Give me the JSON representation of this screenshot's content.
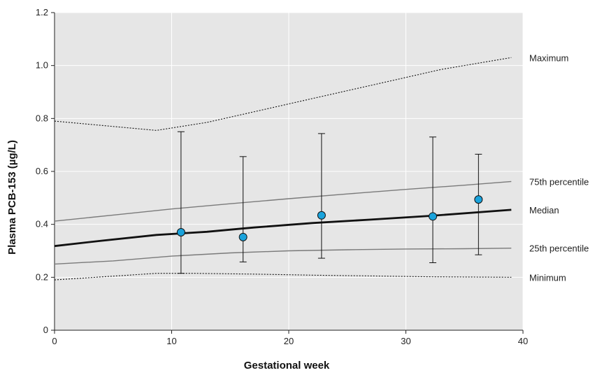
{
  "chart_data": {
    "type": "line",
    "xlabel": "Gestational week",
    "ylabel": "Plasma PCB-153 (µg/L)",
    "xlim": [
      0,
      40
    ],
    "ylim": [
      0,
      1.2
    ],
    "xticks": [
      0,
      10,
      20,
      30,
      40
    ],
    "yticks": [
      0,
      0.2,
      0.4,
      0.6,
      0.8,
      1.0,
      1.2
    ],
    "ytick_labels": [
      "0",
      "0.2",
      "0.4",
      "0.6",
      "0.8",
      "1.0",
      "1.2"
    ],
    "grid": true,
    "background": "#e6e6e6",
    "series": [
      {
        "name": "Maximum",
        "style": "dotted",
        "color": "#111111",
        "x": [
          0,
          8.7,
          13,
          17,
          21,
          25,
          29,
          33,
          39
        ],
        "y": [
          0.79,
          0.755,
          0.785,
          0.825,
          0.865,
          0.905,
          0.945,
          0.985,
          1.03
        ]
      },
      {
        "name": "75th percentile",
        "style": "solid-thin",
        "color": "#7a7a7a",
        "x": [
          0,
          5,
          10,
          15,
          20,
          25,
          30,
          35,
          39
        ],
        "y": [
          0.412,
          0.435,
          0.458,
          0.478,
          0.497,
          0.515,
          0.532,
          0.548,
          0.562
        ]
      },
      {
        "name": "Median",
        "style": "solid-bold",
        "color": "#111111",
        "x": [
          0,
          4,
          8.7,
          13,
          17,
          22,
          27,
          32,
          39
        ],
        "y": [
          0.318,
          0.338,
          0.36,
          0.372,
          0.388,
          0.405,
          0.418,
          0.432,
          0.455
        ]
      },
      {
        "name": "25th percentile",
        "style": "solid-thin",
        "color": "#7a7a7a",
        "x": [
          0,
          5,
          10,
          15,
          20,
          25,
          30,
          35,
          39
        ],
        "y": [
          0.25,
          0.262,
          0.28,
          0.292,
          0.3,
          0.304,
          0.307,
          0.308,
          0.31
        ]
      },
      {
        "name": "Minimum",
        "style": "dotted",
        "color": "#111111",
        "x": [
          0,
          8.7,
          12,
          17,
          22,
          27,
          32,
          39
        ],
        "y": [
          0.19,
          0.215,
          0.215,
          0.212,
          0.208,
          0.205,
          0.202,
          0.2
        ]
      }
    ],
    "points": {
      "color": "#1aa3dc",
      "x": [
        10.8,
        16.1,
        22.8,
        32.3,
        36.2
      ],
      "y": [
        0.37,
        0.352,
        0.434,
        0.43,
        0.494
      ],
      "err_low": [
        0.215,
        0.258,
        0.272,
        0.255,
        0.285
      ],
      "err_high": [
        0.75,
        0.656,
        0.743,
        0.73,
        0.665
      ]
    }
  }
}
